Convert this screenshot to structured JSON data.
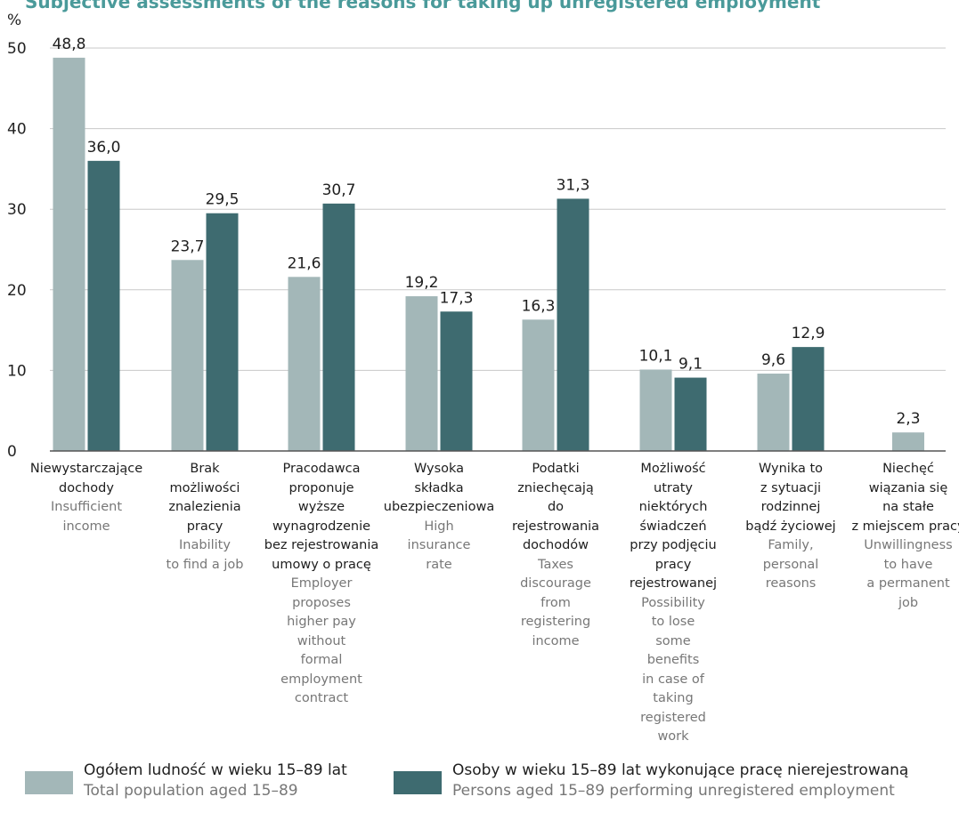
{
  "chart_data": {
    "type": "bar",
    "title": "Subjective assessments of the reasons for taking up unregistered employment",
    "ylabel": "%",
    "ylim": [
      0,
      50
    ],
    "yticks": [
      0,
      10,
      20,
      30,
      40,
      50
    ],
    "grid": true,
    "legend_position": "bottom",
    "categories": [
      {
        "pl": "Niewystarczające dochody",
        "en": "Insufficient income"
      },
      {
        "pl": "Brak możliwości znalezienia pracy",
        "en": "Inability to find a job"
      },
      {
        "pl": "Pracodawca proponuje wyższe wynagrodzenie bez rejestrowania umowy o pracę",
        "en": "Employer proposes higher pay without formal employment contract"
      },
      {
        "pl": "Wysoka składka ubezpieczeniowa",
        "en": "High insurance rate"
      },
      {
        "pl": "Podatki zniechęcają do rejestrowania dochodów",
        "en": "Taxes discourage from registering income"
      },
      {
        "pl": "Możliwość utraty niektórych świadczeń przy podjęciu pracy rejestrowanej",
        "en": "Possibility to lose some benefits in case of taking registered work"
      },
      {
        "pl": "Wynika to z sytuacji rodzinnej bądź życiowej",
        "en": "Family, personal reasons"
      },
      {
        "pl": "Niechęć wiązania się na stałe z miejscem pracy",
        "en": "Unwillingness to have a permanent job"
      }
    ],
    "series": [
      {
        "name": "Ogółem ludność w wieku 15–89 lat",
        "name_en": "Total population aged 15–89",
        "color": "#a3b7b8",
        "values": [
          48.8,
          23.7,
          21.6,
          19.2,
          16.3,
          10.1,
          9.6,
          2.3
        ],
        "labels": [
          "48,8",
          "23,7",
          "21,6",
          "19,2",
          "16,3",
          "10,1",
          "9,6",
          "2,3"
        ]
      },
      {
        "name": "Osoby w wieku 15–89 lat wykonujące pracę nierejestrowaną",
        "name_en": "Persons aged 15–89 performing unregistered employment",
        "color": "#3e6b70",
        "values": [
          36.0,
          29.5,
          30.7,
          17.3,
          31.3,
          9.1,
          12.9,
          null
        ],
        "labels": [
          "36,0",
          "29,5",
          "30,7",
          "17,3",
          "31,3",
          "9,1",
          "12,9",
          null
        ]
      }
    ]
  },
  "colors": {
    "title": "#4a9a9a",
    "grid": "#c8c8c8",
    "axis": "#555555",
    "text_pl": "#1e1e1e",
    "text_en": "#777777"
  }
}
